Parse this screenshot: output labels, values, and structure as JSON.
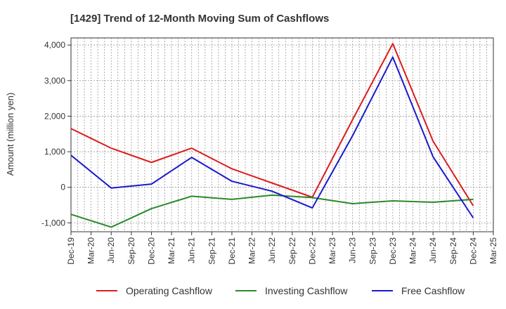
{
  "chart_data": {
    "type": "line",
    "title": "[1429]  Trend of 12-Month Moving Sum of Cashflows",
    "ylabel": "Amount (million yen)",
    "xlabel": "",
    "ylim": [
      -1250,
      4200
    ],
    "yticks": [
      -1000,
      0,
      1000,
      2000,
      3000,
      4000
    ],
    "ytick_labels": [
      "-1,000",
      "0",
      "1,000",
      "2,000",
      "3,000",
      "4,000"
    ],
    "xtick_labels": [
      "Dec-19",
      "Mar-20",
      "Jun-20",
      "Sep-20",
      "Dec-20",
      "Mar-21",
      "Jun-21",
      "Sep-21",
      "Dec-21",
      "Mar-22",
      "Jun-22",
      "Sep-22",
      "Dec-22",
      "Mar-23",
      "Jun-23",
      "Sep-23",
      "Dec-23",
      "Mar-24",
      "Jun-24",
      "Sep-24",
      "Dec-24",
      "Mar-25"
    ],
    "grid": true,
    "legend_position": "bottom",
    "series": [
      {
        "name": "Operating Cashflow",
        "color": "#dd1c1c",
        "points": [
          [
            "Dec-19",
            1650
          ],
          [
            "Jun-20",
            1100
          ],
          [
            "Dec-20",
            700
          ],
          [
            "Jun-21",
            1100
          ],
          [
            "Dec-21",
            520
          ],
          [
            "Jun-22",
            120
          ],
          [
            "Dec-22",
            -280
          ],
          [
            "Jun-23",
            1900
          ],
          [
            "Dec-23",
            4040
          ],
          [
            "Jun-24",
            1300
          ],
          [
            "Dec-24",
            -520
          ]
        ]
      },
      {
        "name": "Investing Cashflow",
        "color": "#2a8a2a",
        "points": [
          [
            "Dec-19",
            -760
          ],
          [
            "Jun-20",
            -1120
          ],
          [
            "Dec-20",
            -600
          ],
          [
            "Jun-21",
            -250
          ],
          [
            "Dec-21",
            -340
          ],
          [
            "Jun-22",
            -220
          ],
          [
            "Dec-22",
            -290
          ],
          [
            "Jun-23",
            -460
          ],
          [
            "Dec-23",
            -380
          ],
          [
            "Jun-24",
            -420
          ],
          [
            "Dec-24",
            -340
          ]
        ]
      },
      {
        "name": "Free Cashflow",
        "color": "#1a1acc",
        "points": [
          [
            "Dec-19",
            900
          ],
          [
            "Jun-20",
            -20
          ],
          [
            "Dec-20",
            90
          ],
          [
            "Jun-21",
            840
          ],
          [
            "Dec-21",
            170
          ],
          [
            "Jun-22",
            -110
          ],
          [
            "Dec-22",
            -580
          ],
          [
            "Jun-23",
            1450
          ],
          [
            "Dec-23",
            3660
          ],
          [
            "Jun-24",
            860
          ],
          [
            "Dec-24",
            -860
          ]
        ]
      }
    ]
  }
}
